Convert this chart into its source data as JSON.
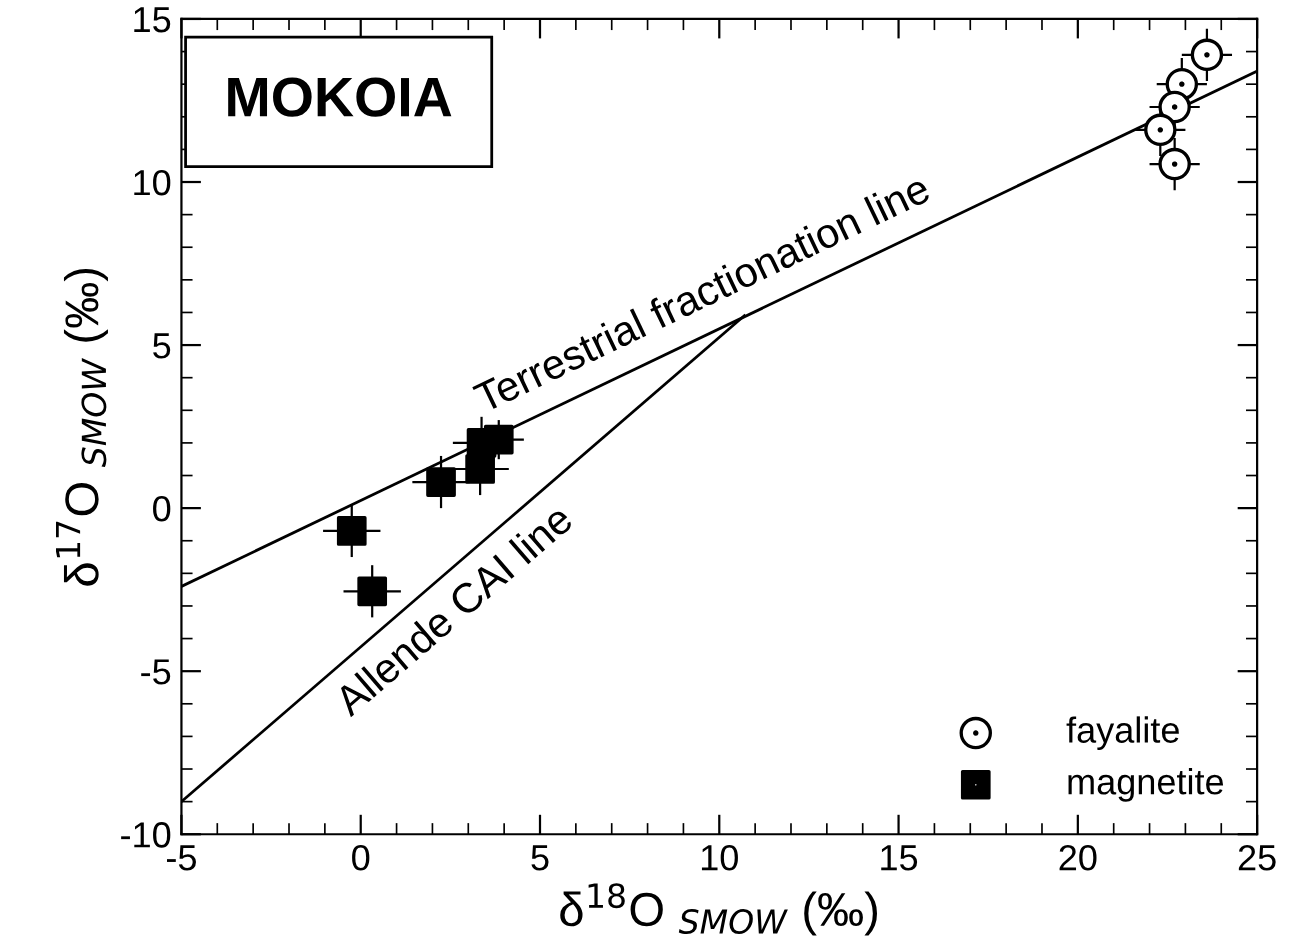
{
  "chart_data": {
    "type": "scatter",
    "xlabel": "δ$^{18}$O $_{SMOW}$ (‰)",
    "ylabel": "δ$^{17}$O $_{SMOW}$ (‰)",
    "xlim": [
      -5,
      25
    ],
    "xticks": [
      -5,
      0,
      5,
      10,
      15,
      20,
      25
    ],
    "ylim": [
      -10,
      15
    ],
    "yticks": [
      -10,
      -5,
      0,
      5,
      10,
      15
    ],
    "grid": false,
    "legend": "bottom right",
    "annotations": [
      "MOKOIA",
      {
        "text": "Terrestrial fractionation line",
        "x": 10,
        "y": 5.5
      },
      {
        "text": "Allende CAI line",
        "x": 2,
        "y": -2.36
      }
    ],
    "series": [
      {
        "name": "fayalite",
        "marker": "circle",
        "color": "#000000",
        "x": [
          23.6,
          22.9,
          22.7,
          22.3,
          22.7
        ],
        "values": [
          13.9,
          13.0,
          12.3,
          11.6,
          10.55
        ],
        "errors": [
          0.8,
          0.8,
          0.8,
          0.8,
          0.8
        ],
        "xerrors": [
          0.7,
          0.7,
          0.7,
          0.7,
          0.7
        ]
      },
      {
        "name": "magnetite",
        "marker": "square",
        "color": "#000000",
        "x": [
          -0.25,
          0.32,
          2.24,
          3.37,
          3.33,
          3.85
        ],
        "values": [
          -0.7,
          -2.55,
          0.8,
          2.0,
          1.2,
          2.1
        ],
        "errors": [
          0.8,
          0.8,
          0.8,
          0.8,
          0.8,
          0.6
        ],
        "xerrors": [
          0.8,
          0.8,
          0.8,
          0.8,
          0.8,
          0.7
        ]
      },
      {
        "type": "line",
        "color": "#000000",
        "line_style": "solid",
        "x": [
          -5,
          25
        ],
        "values": [
          -2.4,
          13.4
        ]
      },
      {
        "type": "line",
        "color": "#000000",
        "line_style": "solid",
        "x": [
          -5,
          10.7
        ],
        "values": [
          -9.0,
          5.9
        ]
      }
    ]
  }
}
